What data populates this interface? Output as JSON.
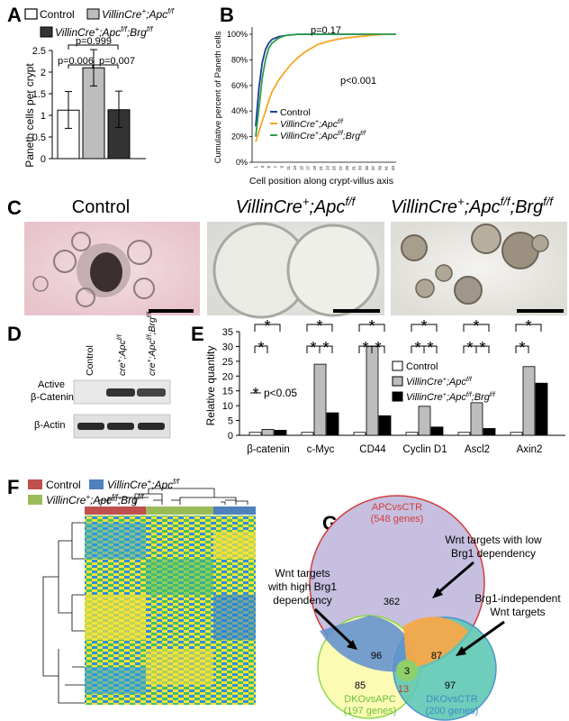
{
  "panels": {
    "A": "A",
    "B": "B",
    "C": "C",
    "D": "D",
    "E": "E",
    "F": "F",
    "G": "G"
  },
  "legend_top": {
    "control": "Control",
    "apc_pre": "VillinCre",
    "apc_sup1": "+",
    "apc_mid": ";Apc",
    "apc_sup2": "f/f",
    "brg_pre": "VillinCre",
    "brg_sup1": "+",
    "brg_mid": ";Apc",
    "brg_sup2": "f/f",
    "brg_mid2": ";Brg",
    "brg_sup3": "f/f"
  },
  "panelA": {
    "ylabel": "Paneth cells per crypt",
    "p_top": "p=0.999",
    "p_left": "p=0.006",
    "p_right": "p=0.007",
    "colors": {
      "control": "#ffffff",
      "apc": "#bdbdbd",
      "brg": "#333333"
    },
    "chart_data": {
      "type": "bar",
      "categories": [
        "Control",
        "VillinCre+;Apcf/f",
        "VillinCre+;Apcf/f;Brgf/f"
      ],
      "values": [
        1.12,
        2.1,
        1.13
      ],
      "err_low": [
        0.7,
        1.68,
        0.72
      ],
      "err_high": [
        1.55,
        2.52,
        1.56
      ],
      "ylim": [
        0,
        2.5
      ],
      "yticks": [
        "0",
        "0.5",
        "1",
        "1.5",
        "2",
        "2.5"
      ]
    }
  },
  "panelB": {
    "ylabel": "Cumulative percent of Paneth cells",
    "xlabel": "Cell position along crypt-villus axis",
    "p1": "p=0.17",
    "p2": "p<0.001",
    "legend": {
      "control": "Control",
      "apc": "VillinCre",
      "apc_s1": "+",
      "apc_m": ";Apc",
      "apc_s2": "f/f",
      "brg": "VillinCre",
      "brg_s1": "+",
      "brg_m": ";Apc",
      "brg_s2": "f/f",
      "brg_m2": ";Brg",
      "brg_s3": "f/f"
    },
    "colors": {
      "control": "#1f3d99",
      "apc": "#f5a623",
      "brg": "#2e9e4f"
    },
    "chart_data": {
      "type": "line",
      "yticks": [
        "0%",
        "20%",
        "40%",
        "60%",
        "80%",
        "100%"
      ],
      "xticks": [
        "1",
        "3",
        "5",
        "7",
        "9",
        "11",
        "13",
        "15",
        "17",
        "19",
        "21",
        "23",
        "25",
        "27",
        "29",
        "31",
        "33",
        "35",
        "37",
        "39",
        "41",
        "43"
      ],
      "xlim": [
        1,
        44
      ],
      "ylim": [
        0,
        100
      ],
      "series": [
        {
          "x": [
            1,
            2,
            3,
            4,
            5,
            6,
            8,
            10,
            14,
            20,
            44
          ],
          "y": [
            28,
            58,
            78,
            88,
            93,
            96,
            98,
            99,
            100,
            100,
            100
          ]
        },
        {
          "x": [
            1,
            2,
            3,
            4,
            5,
            6,
            8,
            10,
            12,
            14,
            16,
            18,
            20,
            24,
            28,
            32,
            36,
            40,
            44
          ],
          "y": [
            16,
            24,
            32,
            40,
            48,
            55,
            64,
            71,
            77,
            82,
            86,
            89,
            92,
            95,
            97,
            98,
            99,
            100,
            100
          ]
        },
        {
          "x": [
            1,
            2,
            3,
            4,
            5,
            6,
            8,
            10,
            14,
            20,
            44
          ],
          "y": [
            20,
            42,
            66,
            80,
            89,
            93,
            97,
            99,
            100,
            100,
            100
          ]
        }
      ]
    }
  },
  "panelC": {
    "t1": "Control",
    "t2_pre": "VillinCre",
    "t2_s1": "+",
    "t2_m": ";Apc",
    "t2_s2": "f/f",
    "t3_pre": "VillinCre",
    "t3_s1": "+",
    "t3_m": ";Apc",
    "t3_s2": "f/f",
    "t3_m2": ";Brg",
    "t3_s3": "f/f"
  },
  "panelD": {
    "col1": "Control",
    "col2_pre": "cre",
    "col2_s1": "+",
    "col2_m": ";Apc",
    "col2_s2": "f/f",
    "col3_pre": "cre",
    "col3_s1": "+",
    "col3_m": ";Apc",
    "col3_s2": "f/f",
    "col3_m2": ";Brg",
    "col3_s3": "f/f",
    "row1a": "Active",
    "row1b": "β-Catenin",
    "row2": "β-Actin"
  },
  "panelE": {
    "ylabel": "Relative quantity",
    "star": "*",
    "sig": "p<0.05",
    "legend": {
      "control": "Control",
      "apc": "VillinCre",
      "apc_s1": "+",
      "apc_m": ";Apc",
      "apc_s2": "f/f",
      "brg": "VillinCre",
      "brg_s1": "+",
      "brg_m": ";Apc",
      "brg_s2": "f/f",
      "brg_m2": ";Brg",
      "brg_s3": "f/f"
    },
    "chart_data": {
      "type": "bar",
      "categories": [
        "β-catenin",
        "c-Myc",
        "CD44",
        "Cyclin D1",
        "Ascl2",
        "Axin2"
      ],
      "ylim": [
        0,
        35
      ],
      "yticks": [
        "0",
        "5",
        "10",
        "15",
        "20",
        "25",
        "30",
        "35"
      ],
      "series": [
        {
          "values": [
            1,
            1,
            1,
            1,
            1,
            1
          ]
        },
        {
          "values": [
            2,
            24,
            30,
            9.8,
            11,
            23.2
          ]
        },
        {
          "values": [
            1.7,
            7.6,
            6.6,
            2.8,
            2.3,
            17.6
          ]
        }
      ]
    }
  },
  "panelF": {
    "control": "Control",
    "apc": "VillinCre",
    "apc_s1": "+",
    "apc_m": ";Apc",
    "apc_s2": "f/f",
    "brg": "VillinCre",
    "brg_s1": "+",
    "brg_m": ";Apc",
    "brg_s2": "f/f",
    "brg_m2": ";Brg",
    "brg_s3": "f/f",
    "colors": {
      "control": "#c0504d",
      "apc": "#4f81bd",
      "brg": "#9bbb59"
    }
  },
  "panelG": {
    "apc": "APCvsCTR",
    "apc_n": "(548 genes)",
    "dkoapc": "DKOvsAPC",
    "dkoapc_n": "(197 genes)",
    "dkoctr": "DKOvsCTR",
    "dkoctr_n": "(200 genes)",
    "v362": "362",
    "v96": "96",
    "v87": "87",
    "v3": "3",
    "v85": "85",
    "v13": "13",
    "v97": "97",
    "note1a": "Wnt targets with low",
    "note1b": "Brg1 dependency",
    "note2a": "Wnt targets",
    "note2b": "with high Brg1",
    "note2c": "dependency",
    "note3a": "Brg1-independent",
    "note3b": "Wnt targets"
  }
}
